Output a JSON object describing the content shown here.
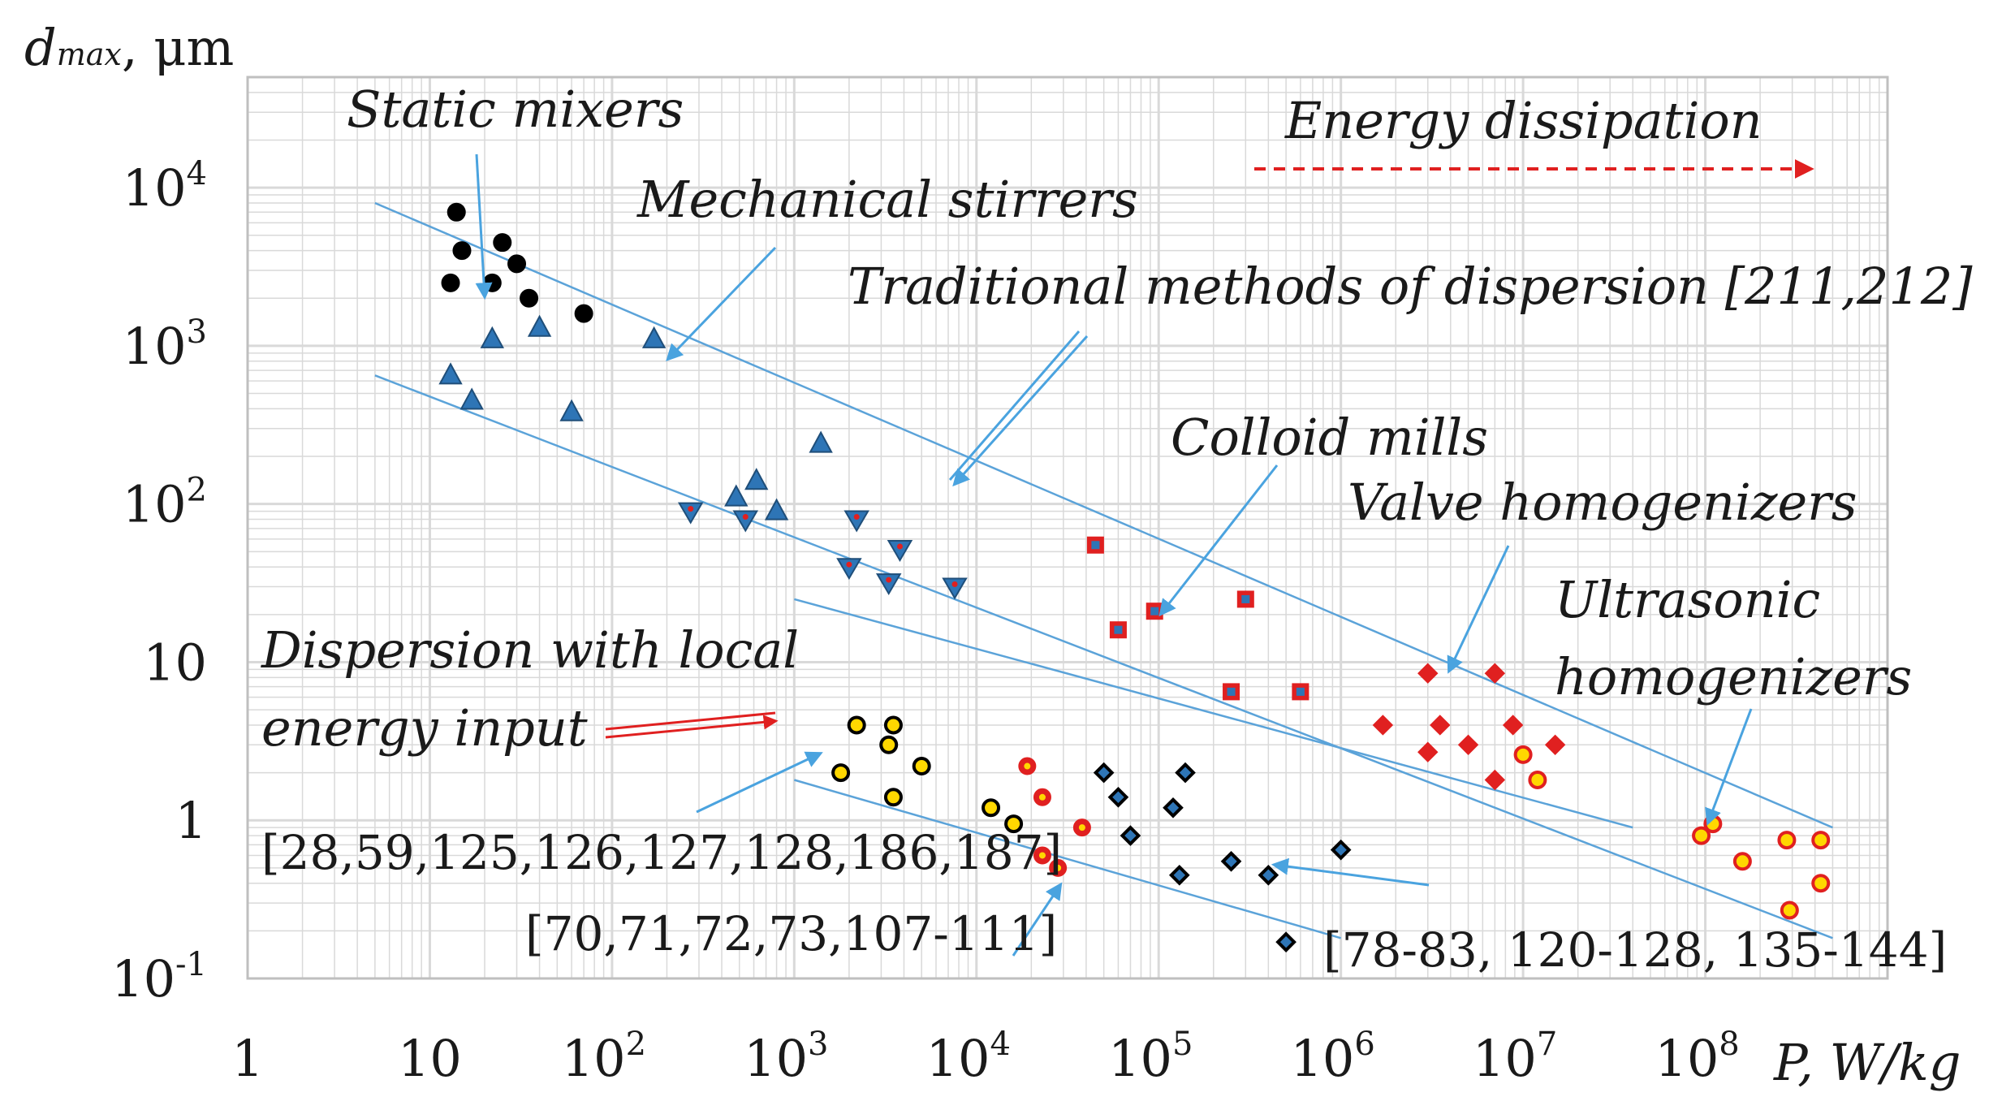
{
  "chart_data": {
    "type": "scatter",
    "title": "",
    "xlabel": "P, W/kg",
    "ylabel_main": "d",
    "ylabel_sub": "max",
    "ylabel_unit": ", μm",
    "xscale": "log",
    "yscale": "log",
    "xlim": [
      1,
      1000000000
    ],
    "ylim": [
      0.1,
      50000
    ],
    "grid": true,
    "x_ticks": [
      {
        "base": "1",
        "exp": ""
      },
      {
        "base": "10",
        "exp": ""
      },
      {
        "base": "10",
        "exp": "2"
      },
      {
        "base": "10",
        "exp": "3"
      },
      {
        "base": "10",
        "exp": "4"
      },
      {
        "base": "10",
        "exp": "5"
      },
      {
        "base": "10",
        "exp": "6"
      },
      {
        "base": "10",
        "exp": "7"
      },
      {
        "base": "10",
        "exp": "8"
      }
    ],
    "y_ticks": [
      {
        "base": "10",
        "exp": "-1"
      },
      {
        "base": "1",
        "exp": ""
      },
      {
        "base": "10",
        "exp": ""
      },
      {
        "base": "10",
        "exp": "2"
      },
      {
        "base": "10",
        "exp": "3"
      },
      {
        "base": "10",
        "exp": "4"
      }
    ],
    "series": [
      {
        "name": "Static mixers",
        "marker": "circle",
        "fill": "#000000",
        "stroke": "#000000",
        "points": [
          [
            14,
            7000
          ],
          [
            15,
            4000
          ],
          [
            13,
            2500
          ],
          [
            22,
            2500
          ],
          [
            25,
            4500
          ],
          [
            30,
            3300
          ],
          [
            35,
            2000
          ],
          [
            70,
            1600
          ]
        ]
      },
      {
        "name": "Mechanical stirrers",
        "marker": "triangle-up",
        "fill": "#2E75B6",
        "stroke": "#1F4E79",
        "points": [
          [
            13,
            650
          ],
          [
            17,
            450
          ],
          [
            22,
            1100
          ],
          [
            40,
            1300
          ],
          [
            60,
            380
          ],
          [
            170,
            1100
          ],
          [
            480,
            110
          ],
          [
            620,
            140
          ],
          [
            800,
            90
          ],
          [
            1400,
            240
          ]
        ]
      },
      {
        "name": "Traditional methods of dispersion [211,212]",
        "marker": "triangle-down",
        "fill": "#2E75B6",
        "stroke": "#1F4E79",
        "center": "#E02020",
        "points": [
          [
            270,
            90
          ],
          [
            540,
            80
          ],
          [
            2200,
            80
          ],
          [
            2000,
            40
          ],
          [
            3300,
            32
          ],
          [
            3800,
            52
          ],
          [
            7600,
            30
          ]
        ]
      },
      {
        "name": "Colloid mills",
        "marker": "square",
        "fill": "#E02020",
        "stroke": "#E02020",
        "center": "#2E75B6",
        "points": [
          [
            45000,
            55
          ],
          [
            60000,
            16
          ],
          [
            95000,
            21
          ],
          [
            300000,
            25
          ],
          [
            250000,
            6.5
          ],
          [
            600000,
            6.5
          ]
        ]
      },
      {
        "name": "Valve homogenizers",
        "marker": "diamond",
        "fill": "#E02020",
        "stroke": "#E02020",
        "points": [
          [
            3000000,
            8.5
          ],
          [
            7000000,
            8.5
          ],
          [
            1700000,
            4
          ],
          [
            3500000,
            4
          ],
          [
            5000000,
            3
          ],
          [
            8800000,
            4
          ],
          [
            15000000,
            3
          ],
          [
            3000000,
            2.7
          ],
          [
            7000000,
            1.8
          ]
        ]
      },
      {
        "name": "Ultrasonic homogenizers",
        "marker": "ring",
        "fill": "#FFD700",
        "stroke": "#E02020",
        "points": [
          [
            10000000,
            2.6
          ],
          [
            12000000,
            1.8
          ],
          [
            95000000,
            0.8
          ],
          [
            110000000,
            0.95
          ],
          [
            160000000,
            0.55
          ],
          [
            280000000,
            0.75
          ],
          [
            290000000,
            0.27
          ],
          [
            430000000,
            0.75
          ],
          [
            430000000,
            0.4
          ]
        ]
      },
      {
        "name": "[28,59,125,126,127,128,186,187]",
        "marker": "ring",
        "fill": "#FFD700",
        "stroke": "#000000",
        "points": [
          [
            1800,
            2
          ],
          [
            2200,
            4
          ],
          [
            3500,
            4
          ],
          [
            3300,
            3
          ],
          [
            5000,
            2.2
          ],
          [
            3500,
            1.4
          ],
          [
            12000,
            1.2
          ],
          [
            16000,
            0.95
          ]
        ]
      },
      {
        "name": "[70,71,72,73,107-111]",
        "marker": "ring-dot",
        "fill": "#E02020",
        "stroke": "#E02020",
        "center": "#FFD700",
        "points": [
          [
            19000,
            2.2
          ],
          [
            23000,
            1.4
          ],
          [
            23000,
            0.6
          ],
          [
            28000,
            0.5
          ],
          [
            38000,
            0.9
          ]
        ]
      },
      {
        "name": "[78-83, 120-128, 135-144]",
        "marker": "small-diamond",
        "fill": "#2E75B6",
        "stroke": "#000000",
        "points": [
          [
            50000,
            2
          ],
          [
            60000,
            1.4
          ],
          [
            70000,
            0.8
          ],
          [
            130000,
            0.45
          ],
          [
            120000,
            1.2
          ],
          [
            140000,
            2
          ],
          [
            250000,
            0.55
          ],
          [
            400000,
            0.45
          ],
          [
            500000,
            0.17
          ],
          [
            1000000,
            0.65
          ]
        ]
      }
    ],
    "guide_lines": [
      {
        "from": [
          5,
          8000
        ],
        "to": [
          500000000,
          0.9
        ]
      },
      {
        "from": [
          5,
          650
        ],
        "to": [
          500000000,
          0.18
        ]
      },
      {
        "from": [
          1000,
          25
        ],
        "to": [
          40000000,
          0.9
        ]
      },
      {
        "from": [
          1000,
          1.8
        ],
        "to": [
          1000000,
          0.18
        ]
      }
    ],
    "annotations": [
      {
        "id": "static-mixers",
        "text": "Static mixers",
        "style": "italic"
      },
      {
        "id": "mechanical-stirrers",
        "text": "Mechanical stirrers",
        "style": "italic"
      },
      {
        "id": "traditional-methods",
        "text": "Traditional methods of dispersion [211,212]",
        "style": "italic"
      },
      {
        "id": "energy-dissipation",
        "text": "Energy dissipation",
        "style": "italic"
      },
      {
        "id": "colloid-mills",
        "text": "Colloid mills",
        "style": "italic"
      },
      {
        "id": "valve-homogenizers",
        "text": "Valve homogenizers",
        "style": "italic"
      },
      {
        "id": "ultrasonic-line1",
        "text": "Ultrasonic",
        "style": "italic"
      },
      {
        "id": "ultrasonic-line2",
        "text": "homogenizers",
        "style": "italic"
      },
      {
        "id": "local-energy-line1",
        "text": "Dispersion with local",
        "style": "italic"
      },
      {
        "id": "local-energy-line2",
        "text": "energy input",
        "style": "italic"
      },
      {
        "id": "ref-group-1",
        "text": "[28,59,125,126,127,128,186,187]",
        "style": "plain"
      },
      {
        "id": "ref-group-2",
        "text": "[70,71,72,73,107-111]",
        "style": "plain"
      },
      {
        "id": "ref-group-3",
        "text": "[78-83, 120-128, 135-144]",
        "style": "plain"
      }
    ],
    "colors": {
      "grid": "#d9d9d9",
      "guide_line": "#5BA3D9",
      "arrow_blue": "#4AA3DF",
      "arrow_red": "#E02020",
      "text": "#1a1a1a"
    }
  }
}
